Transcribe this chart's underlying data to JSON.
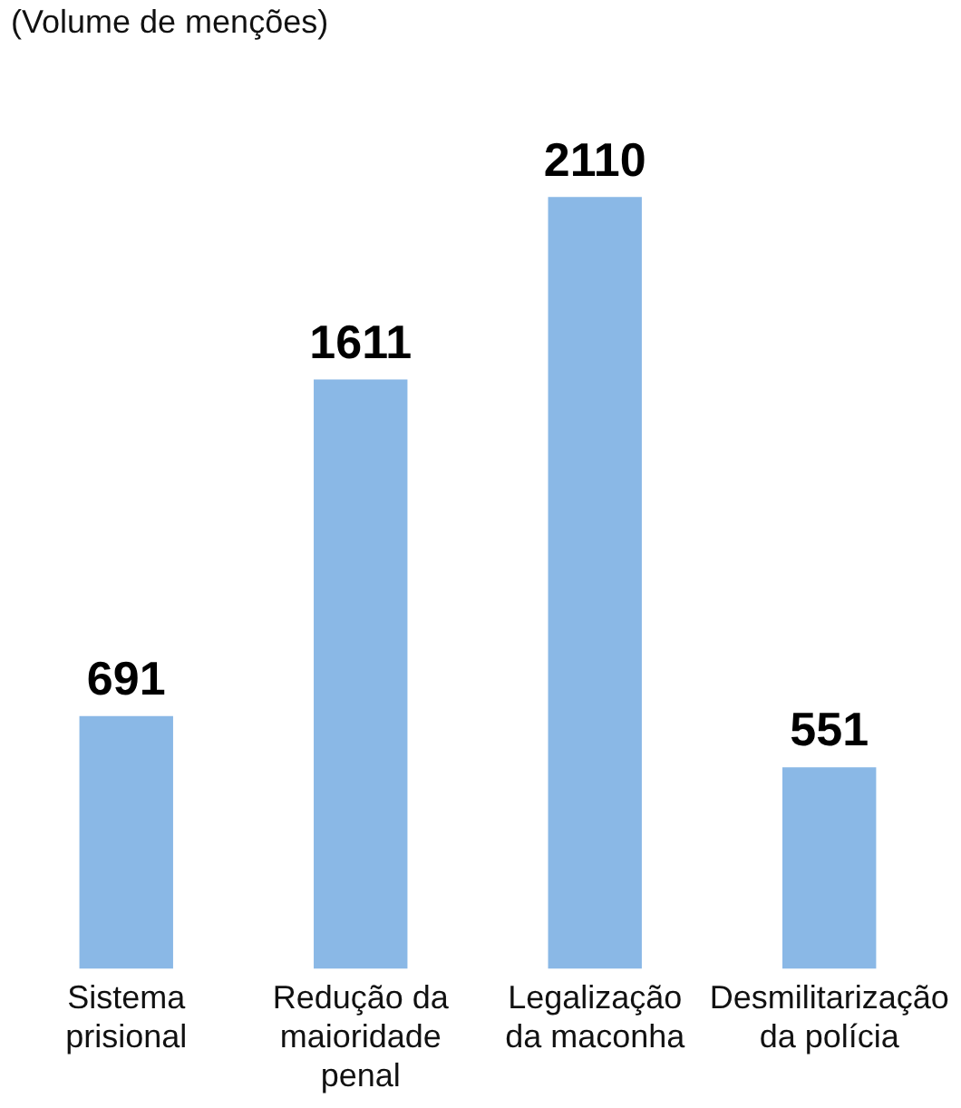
{
  "chart_data": {
    "type": "bar",
    "subtitle": "(Volume de menções)",
    "categories": [
      "Sistema prisional",
      "Redução da maioridade penal",
      "Legalização da maconha",
      "Desmilitarização da polícia"
    ],
    "values": [
      691,
      1611,
      2110,
      551
    ],
    "color": "#8ab8e6",
    "data_labels": true,
    "grid": false
  }
}
